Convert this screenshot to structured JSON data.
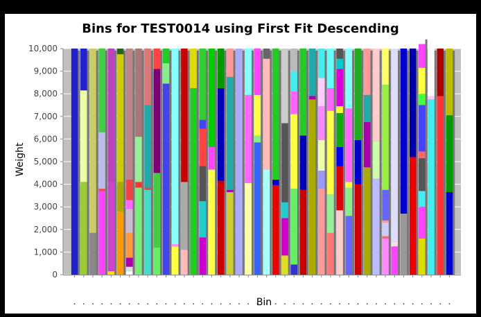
{
  "chart_data": {
    "type": "bar",
    "stacked": true,
    "title": "Bins for TEST0014 using First Fit Descending",
    "xlabel": "Bin",
    "ylabel": "Weight",
    "ylim": [
      0,
      10000
    ],
    "yticks": [
      "0",
      "1,000",
      "2,000",
      "3,000",
      "4,000",
      "5,000",
      "6,000",
      "7,000",
      "8,000",
      "9,000",
      "10,000"
    ],
    "grid": true,
    "plot_background": "#c0c0c0",
    "bin_capacity": 10000,
    "bins": [
      {
        "items": [
          {
            "w": 10000,
            "c": "#2222cc"
          }
        ]
      },
      {
        "items": [
          {
            "w": 4100,
            "c": "#99cc33"
          },
          {
            "w": 4050,
            "c": "#eeffaa"
          },
          {
            "w": 1850,
            "c": "#2222cc"
          }
        ]
      },
      {
        "items": [
          {
            "w": 1850,
            "c": "#888888"
          },
          {
            "w": 8150,
            "c": "#cccc66"
          }
        ]
      },
      {
        "items": [
          {
            "w": 3700,
            "c": "#ff44ff"
          },
          {
            "w": 100,
            "c": "#ff4444"
          },
          {
            "w": 2500,
            "c": "#bbbbee"
          },
          {
            "w": 3700,
            "c": "#44cc44"
          }
        ]
      },
      {
        "items": [
          {
            "w": 150,
            "c": "#ffdd00"
          },
          {
            "w": 3950,
            "c": "#cc44cc"
          },
          {
            "w": 5900,
            "c": "#bb44bb"
          }
        ]
      },
      {
        "items": [
          {
            "w": 2800,
            "c": "#ff9900"
          },
          {
            "w": 1300,
            "c": "#aaaa00"
          },
          {
            "w": 5650,
            "c": "#cccc00"
          },
          {
            "w": 250,
            "c": "#226622"
          }
        ]
      },
      {
        "items": [
          {
            "w": 150,
            "c": "#ffffff"
          },
          {
            "w": 200,
            "c": "#dddddd"
          },
          {
            "w": 400,
            "c": "#aa00aa"
          },
          {
            "w": 1100,
            "c": "#ff9944"
          },
          {
            "w": 1050,
            "c": "#ccbbcc"
          },
          {
            "w": 400,
            "c": "#ff66ff"
          },
          {
            "w": 900,
            "c": "#ee4444"
          },
          {
            "w": 5800,
            "c": "#bb8888"
          }
        ]
      },
      {
        "items": [
          {
            "w": 3850,
            "c": "#77ee77"
          },
          {
            "w": 250,
            "c": "#ff3333"
          },
          {
            "w": 2000,
            "c": "#99ee99"
          },
          {
            "w": 3900,
            "c": "#aa7777"
          }
        ]
      },
      {
        "items": [
          {
            "w": 3750,
            "c": "#44ddcc"
          },
          {
            "w": 100,
            "c": "#ee4444"
          },
          {
            "w": 3650,
            "c": "#22aaaa"
          },
          {
            "w": 2500,
            "c": "#dd7777"
          }
        ]
      },
      {
        "items": [
          {
            "w": 1200,
            "c": "#66ee66"
          },
          {
            "w": 3300,
            "c": "#44cc44"
          },
          {
            "w": 4600,
            "c": "#770077"
          },
          {
            "w": 900,
            "c": "#ff4444"
          }
        ]
      },
      {
        "items": [
          {
            "w": 8450,
            "c": "#4444ee"
          },
          {
            "w": 900,
            "c": "#88ee88"
          },
          {
            "w": 650,
            "c": "#22cc22"
          }
        ]
      },
      {
        "items": [
          {
            "w": 1250,
            "c": "#ffff44"
          },
          {
            "w": 100,
            "c": "#ff88ff"
          },
          {
            "w": 8650,
            "c": "#88ffff"
          }
        ]
      },
      {
        "items": [
          {
            "w": 1100,
            "c": "#ffbbbb"
          },
          {
            "w": 3000,
            "c": "#aaaaaa"
          },
          {
            "w": 5900,
            "c": "#cc0000"
          }
        ]
      },
      {
        "items": [
          {
            "w": 8250,
            "c": "#22cc22"
          },
          {
            "w": 1750,
            "c": "#dddd00"
          }
        ]
      },
      {
        "items": [
          {
            "w": 1650,
            "c": "#cc00cc"
          },
          {
            "w": 1600,
            "c": "#22cccc"
          },
          {
            "w": 1550,
            "c": "#555555"
          },
          {
            "w": 1650,
            "c": "#ff4444"
          },
          {
            "w": 400,
            "c": "#4444ff"
          },
          {
            "w": 3150,
            "c": "#33cc33"
          }
        ]
      },
      {
        "items": [
          {
            "w": 4650,
            "c": "#ffff44"
          },
          {
            "w": 1000,
            "c": "#ff44ff"
          },
          {
            "w": 4350,
            "c": "#00cc00"
          }
        ]
      },
      {
        "items": [
          {
            "w": 4150,
            "c": "#cc0000"
          },
          {
            "w": 4100,
            "c": "#0000bb"
          },
          {
            "w": 1750,
            "c": "#009900"
          }
        ]
      },
      {
        "items": [
          {
            "w": 3650,
            "c": "#cccc33"
          },
          {
            "w": 100,
            "c": "#aa00aa"
          },
          {
            "w": 5000,
            "c": "#22aaaa"
          },
          {
            "w": 1250,
            "c": "#ff9999"
          }
        ]
      },
      {
        "items": [
          {
            "w": 10000,
            "c": "#aaaaff"
          }
        ]
      },
      {
        "items": [
          {
            "w": 4050,
            "c": "#ffffaa"
          },
          {
            "w": 3900,
            "c": "#ff66ff"
          },
          {
            "w": 2050,
            "c": "#88ffff"
          }
        ]
      },
      {
        "items": [
          {
            "w": 5850,
            "c": "#3366ff"
          },
          {
            "w": 300,
            "c": "#88ee88"
          },
          {
            "w": 1800,
            "c": "#ffff44"
          },
          {
            "w": 2050,
            "c": "#ff44ff"
          }
        ]
      },
      {
        "items": [
          {
            "w": 4650,
            "c": "#aaffff"
          },
          {
            "w": 4900,
            "c": "#ffbbbb"
          },
          {
            "w": 450,
            "c": "#666666"
          }
        ]
      },
      {
        "items": [
          {
            "w": 3950,
            "c": "#ee0000"
          },
          {
            "w": 250,
            "c": "#0000cc"
          },
          {
            "w": 5800,
            "c": "#22cc22"
          }
        ]
      },
      {
        "items": [
          {
            "w": 850,
            "c": "#dddd22"
          },
          {
            "w": 1650,
            "c": "#cc00cc"
          },
          {
            "w": 700,
            "c": "#22cccc"
          },
          {
            "w": 3500,
            "c": "#555555"
          },
          {
            "w": 3300,
            "c": "#cccccc"
          }
        ]
      },
      {
        "items": [
          {
            "w": 450,
            "c": "#3333cc"
          },
          {
            "w": 3350,
            "c": "#66ee66"
          },
          {
            "w": 3300,
            "c": "#ffff44"
          },
          {
            "w": 1000,
            "c": "#ff66ff"
          },
          {
            "w": 900,
            "c": "#44eeee"
          },
          {
            "w": 1000,
            "c": "#bbbbbb"
          }
        ]
      },
      {
        "items": [
          {
            "w": 3750,
            "c": "#cc0000"
          },
          {
            "w": 2400,
            "c": "#0000bb"
          },
          {
            "w": 3850,
            "c": "#22cc22"
          }
        ]
      },
      {
        "items": [
          {
            "w": 7750,
            "c": "#aaaa00"
          },
          {
            "w": 150,
            "c": "#aa00aa"
          },
          {
            "w": 2100,
            "c": "#22aaaa"
          }
        ]
      },
      {
        "items": [
          {
            "w": 3800,
            "c": "#ff9999"
          },
          {
            "w": 800,
            "c": "#9999ff"
          },
          {
            "w": 1350,
            "c": "#eeffaa"
          },
          {
            "w": 1500,
            "c": "#ff88ff"
          },
          {
            "w": 1250,
            "c": "#ffccff"
          },
          {
            "w": 1300,
            "c": "#44eeee"
          }
        ]
      },
      {
        "items": [
          {
            "w": 1850,
            "c": "#ff7777"
          },
          {
            "w": 1700,
            "c": "#99ee99"
          },
          {
            "w": 3700,
            "c": "#ffff44"
          },
          {
            "w": 1000,
            "c": "#ff66ff"
          },
          {
            "w": 1750,
            "c": "#66ffff"
          }
        ]
      },
      {
        "items": [
          {
            "w": 2850,
            "c": "#ffcccc"
          },
          {
            "w": 1950,
            "c": "#dd0000"
          },
          {
            "w": 850,
            "c": "#0000ee"
          },
          {
            "w": 1500,
            "c": "#11aa11"
          },
          {
            "w": 300,
            "c": "#ffff33"
          },
          {
            "w": 1650,
            "c": "#dd00dd"
          },
          {
            "w": 450,
            "c": "#00cccc"
          },
          {
            "w": 450,
            "c": "#555555"
          }
        ]
      },
      {
        "items": [
          {
            "w": 2600,
            "c": "#6666ff"
          },
          {
            "w": 1250,
            "c": "#88ee88"
          },
          {
            "w": 250,
            "c": "#ffff44"
          },
          {
            "w": 3250,
            "c": "#ff66ff"
          },
          {
            "w": 2650,
            "c": "#88ffff"
          }
        ]
      },
      {
        "items": [
          {
            "w": 4000,
            "c": "#cc0000"
          },
          {
            "w": 1950,
            "c": "#0000cc"
          },
          {
            "w": 4050,
            "c": "#22aa22"
          }
        ]
      },
      {
        "items": [
          {
            "w": 4750,
            "c": "#aaaa00"
          },
          {
            "w": 2000,
            "c": "#aa00aa"
          },
          {
            "w": 1200,
            "c": "#22aaaa"
          },
          {
            "w": 2050,
            "c": "#ff9999"
          }
        ]
      },
      {
        "items": [
          {
            "w": 4250,
            "c": "#bbbbff"
          },
          {
            "w": 1650,
            "c": "#ccffaa"
          },
          {
            "w": 4100,
            "c": "#ffcccc"
          }
        ]
      },
      {
        "items": [
          {
            "w": 1600,
            "c": "#ff88ff"
          },
          {
            "w": 100,
            "c": "#ff6666"
          },
          {
            "w": 600,
            "c": "#ccccff"
          },
          {
            "w": 100,
            "c": "#ff9999"
          },
          {
            "w": 1350,
            "c": "#6666ff"
          },
          {
            "w": 4650,
            "c": "#99ee44"
          },
          {
            "w": 1600,
            "c": "#ffff66"
          }
        ]
      },
      {
        "items": [
          {
            "w": 1250,
            "c": "#ff44ff"
          },
          {
            "w": 200,
            "c": "#ffdddd"
          },
          {
            "w": 8550,
            "c": "#ddddff"
          }
        ]
      },
      {
        "items": [
          {
            "w": 2700,
            "c": "#999999"
          },
          {
            "w": 7300,
            "c": "#0000cc"
          }
        ]
      },
      {
        "items": [
          {
            "w": 5200,
            "c": "#ee0000"
          },
          {
            "w": 4800,
            "c": "#0000aa"
          }
        ]
      },
      {
        "items": [
          {
            "w": 1600,
            "c": "#dddd00"
          },
          {
            "w": 1400,
            "c": "#ff44ff"
          },
          {
            "w": 700,
            "c": "#44eeee"
          },
          {
            "w": 1450,
            "c": "#555555"
          },
          {
            "w": 300,
            "c": "#ff6666"
          },
          {
            "w": 2050,
            "c": "#4444ff"
          },
          {
            "w": 500,
            "c": "#44ff44"
          },
          {
            "w": 1150,
            "c": "#ffff44"
          },
          {
            "w": 1050,
            "c": "#ff44ff"
          },
          {
            "w": 300,
            "c": "#ffffff"
          }
        ]
      },
      {
        "items": [
          {
            "w": 7750,
            "c": "#44eeee"
          },
          {
            "w": 150,
            "c": "#ffccff"
          },
          {
            "w": 2100,
            "c": "#ffffff"
          }
        ]
      },
      {
        "items": [
          {
            "w": 7900,
            "c": "#ff3333"
          },
          {
            "w": 2100,
            "c": "#aa0000"
          }
        ]
      },
      {
        "items": [
          {
            "w": 3650,
            "c": "#0000cc"
          },
          {
            "w": 3400,
            "c": "#009900"
          },
          {
            "w": 2950,
            "c": "#bbbb00"
          }
        ]
      }
    ]
  }
}
